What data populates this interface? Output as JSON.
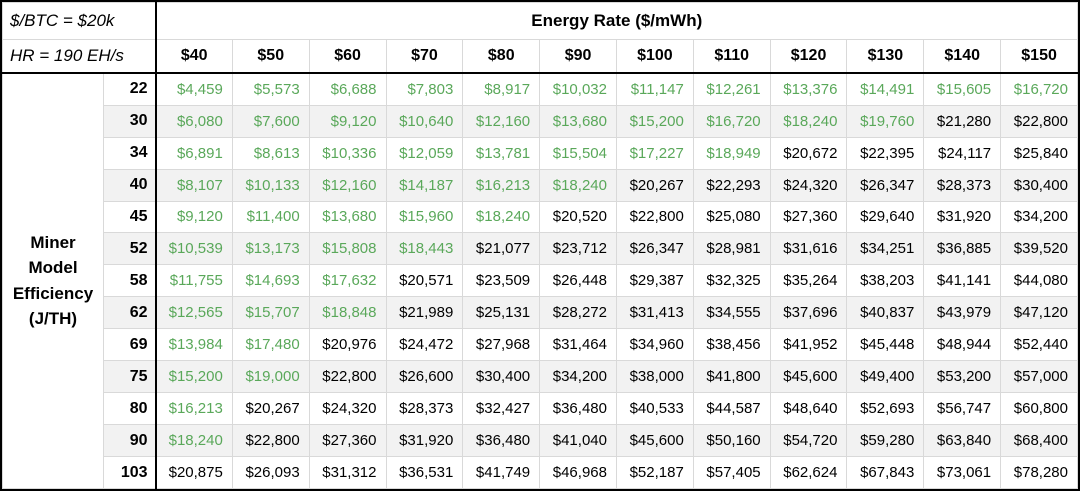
{
  "assumptions": {
    "btc_price": "$/BTC = $20k",
    "hashrate": "HR = 190 EH/s"
  },
  "chart_data": {
    "type": "table",
    "column_group_title": "Energy Rate ($/mWh)",
    "row_axis_title": "Miner\nModel\nEfficiency\n(J/TH)",
    "columns": [
      "$40",
      "$50",
      "$60",
      "$70",
      "$80",
      "$90",
      "$100",
      "$110",
      "$120",
      "$130",
      "$140",
      "$150"
    ],
    "rows": [
      22,
      30,
      34,
      40,
      45,
      52,
      58,
      62,
      69,
      75,
      80,
      90,
      103
    ],
    "values": [
      [
        4459,
        5573,
        6688,
        7803,
        8917,
        10032,
        11147,
        12261,
        13376,
        14491,
        15605,
        16720
      ],
      [
        6080,
        7600,
        9120,
        10640,
        12160,
        13680,
        15200,
        16720,
        18240,
        19760,
        21280,
        22800
      ],
      [
        6891,
        8613,
        10336,
        12059,
        13781,
        15504,
        17227,
        18949,
        20672,
        22395,
        24117,
        25840
      ],
      [
        8107,
        10133,
        12160,
        14187,
        16213,
        18240,
        20267,
        22293,
        24320,
        26347,
        28373,
        30400
      ],
      [
        9120,
        11400,
        13680,
        15960,
        18240,
        20520,
        22800,
        25080,
        27360,
        29640,
        31920,
        34200
      ],
      [
        10539,
        13173,
        15808,
        18443,
        21077,
        23712,
        26347,
        28981,
        31616,
        34251,
        36885,
        39520
      ],
      [
        11755,
        14693,
        17632,
        20571,
        23509,
        26448,
        29387,
        32325,
        35264,
        38203,
        41141,
        44080
      ],
      [
        12565,
        15707,
        18848,
        21989,
        25131,
        28272,
        31413,
        34555,
        37696,
        40837,
        43979,
        47120
      ],
      [
        13984,
        17480,
        20976,
        24472,
        27968,
        31464,
        34960,
        38456,
        41952,
        45448,
        48944,
        52440
      ],
      [
        15200,
        19000,
        22800,
        26600,
        30400,
        34200,
        38000,
        41800,
        45600,
        49400,
        53200,
        57000
      ],
      [
        16213,
        20267,
        24320,
        28373,
        32427,
        36480,
        40533,
        44587,
        48640,
        52693,
        56747,
        60800
      ],
      [
        18240,
        22800,
        27360,
        31920,
        36480,
        41040,
        45600,
        50160,
        54720,
        59280,
        63840,
        68400
      ],
      [
        20875,
        26093,
        31312,
        36531,
        41749,
        46968,
        52187,
        57405,
        62624,
        67843,
        73061,
        78280
      ]
    ],
    "value_prefix": "$",
    "green_if_below": 20000,
    "colors": {
      "profitable_value_text": "#5aa85a",
      "standard_value_text": "#000000",
      "row_band_background": "#f2f2f2",
      "gridline": "#d9d9d9",
      "border": "#000000"
    }
  }
}
